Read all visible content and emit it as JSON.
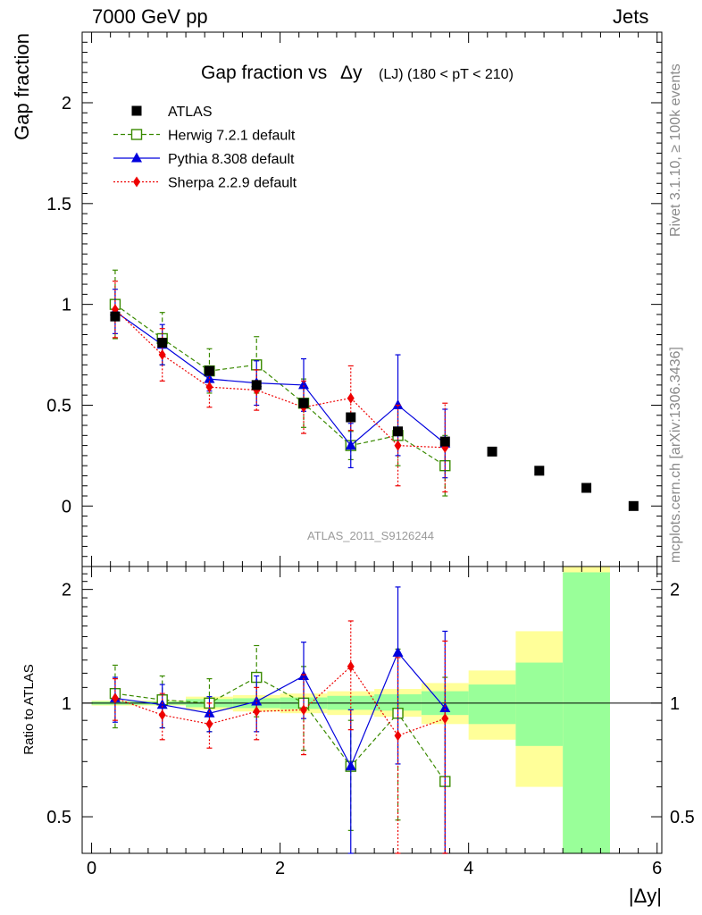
{
  "header": {
    "left": "7000 GeV pp",
    "right": "Jets"
  },
  "side_labels": {
    "rivet": "Rivet 3.1.10, ≥ 100k events",
    "mcplots": "mcplots.cern.ch [arXiv:1306.3436]"
  },
  "chart_data": {
    "type": "scatter",
    "title": "Gap fraction vsΔy (LJ) (180 < pT < 210)",
    "title_parts": {
      "main": "Gap fraction vs",
      "delta": "Δy",
      "sub": "(LJ) (180 < pT < 210)"
    },
    "analysis_id": "ATLAS_2011_S9126244",
    "xlabel": "|Δy|",
    "ylabel": "Gap fraction",
    "ratio_ylabel": "Ratio to ATLAS",
    "xlim": [
      -0.1,
      6.05
    ],
    "ylim": [
      -0.3,
      2.35
    ],
    "ratio_ylim": [
      0.4,
      2.3
    ],
    "x_ticks": [
      "0",
      "2",
      "4",
      "6"
    ],
    "y_ticks": [
      "0",
      "0.5",
      "1",
      "1.5",
      "2"
    ],
    "ratio_y_ticks": [
      "0.5",
      "1",
      "2"
    ],
    "legend_position": "top-left",
    "x": [
      0.25,
      0.75,
      1.25,
      1.75,
      2.25,
      2.75,
      3.25,
      3.75,
      4.25,
      4.75,
      5.25,
      5.75
    ],
    "series": [
      {
        "name": "ATLAS",
        "color": "#000000",
        "marker": "filled-square",
        "values": [
          0.94,
          0.81,
          0.67,
          0.6,
          0.51,
          0.44,
          0.37,
          0.32,
          0.27,
          0.175,
          0.09,
          0.0
        ]
      },
      {
        "name": "Herwig 7.2.1 default",
        "color": "#3a8a00",
        "marker": "open-square",
        "line": "dashed",
        "values": [
          1.0,
          0.83,
          0.67,
          0.7,
          0.51,
          0.3,
          0.35,
          0.2
        ],
        "err": [
          0.17,
          0.13,
          0.11,
          0.14,
          0.12,
          0.07,
          0.15,
          0.15
        ],
        "ratio": [
          1.06,
          1.02,
          1.0,
          1.17,
          1.0,
          0.68,
          0.94,
          0.62
        ],
        "ratio_err": [
          0.2,
          0.16,
          0.16,
          0.25,
          0.25,
          0.22,
          0.45,
          0.55
        ]
      },
      {
        "name": "Pythia 8.308 default",
        "color": "#0000dd",
        "marker": "filled-triangle",
        "line": "solid",
        "values": [
          0.965,
          0.8,
          0.63,
          0.61,
          0.6,
          0.3,
          0.5,
          0.31
        ],
        "err": [
          0.11,
          0.1,
          0.06,
          0.11,
          0.13,
          0.11,
          0.25,
          0.17
        ],
        "ratio": [
          1.03,
          0.99,
          0.94,
          1.01,
          1.18,
          0.68,
          1.36,
          0.97
        ],
        "ratio_err": [
          0.14,
          0.13,
          0.1,
          0.17,
          0.27,
          0.28,
          0.67,
          0.58
        ]
      },
      {
        "name": "Sherpa 2.2.9 default",
        "color": "#ee0000",
        "marker": "filled-diamond",
        "line": "dotted",
        "values": [
          0.975,
          0.75,
          0.59,
          0.575,
          0.49,
          0.535,
          0.3,
          0.29
        ],
        "err": [
          0.14,
          0.13,
          0.1,
          0.1,
          0.13,
          0.16,
          0.2,
          0.22
        ],
        "ratio": [
          1.03,
          0.93,
          0.88,
          0.95,
          0.96,
          1.25,
          0.82,
          0.91
        ],
        "ratio_err": [
          0.13,
          0.13,
          0.12,
          0.15,
          0.23,
          0.4,
          0.5,
          0.55
        ]
      }
    ],
    "ratio_bands": [
      {
        "x0": 0.0,
        "x1": 0.5,
        "yellow": [
          0.985,
          1.015
        ],
        "green": [
          0.99,
          1.01
        ]
      },
      {
        "x0": 0.5,
        "x1": 1.0,
        "yellow": [
          0.985,
          1.015
        ],
        "green": [
          0.99,
          1.01
        ]
      },
      {
        "x0": 1.0,
        "x1": 1.5,
        "yellow": [
          0.96,
          1.04
        ],
        "green": [
          0.975,
          1.025
        ]
      },
      {
        "x0": 1.5,
        "x1": 2.0,
        "yellow": [
          0.95,
          1.05
        ],
        "green": [
          0.97,
          1.03
        ]
      },
      {
        "x0": 2.0,
        "x1": 2.5,
        "yellow": [
          0.94,
          1.06
        ],
        "green": [
          0.965,
          1.035
        ]
      },
      {
        "x0": 2.5,
        "x1": 3.0,
        "yellow": [
          0.93,
          1.075
        ],
        "green": [
          0.96,
          1.045
        ]
      },
      {
        "x0": 3.0,
        "x1": 3.5,
        "yellow": [
          0.92,
          1.09
        ],
        "green": [
          0.955,
          1.055
        ]
      },
      {
        "x0": 3.5,
        "x1": 4.0,
        "yellow": [
          0.88,
          1.13
        ],
        "green": [
          0.93,
          1.075
        ]
      },
      {
        "x0": 4.0,
        "x1": 4.5,
        "yellow": [
          0.8,
          1.22
        ],
        "green": [
          0.88,
          1.12
        ]
      },
      {
        "x0": 4.5,
        "x1": 5.0,
        "yellow": [
          0.6,
          1.55
        ],
        "green": [
          0.77,
          1.28
        ]
      },
      {
        "x0": 5.0,
        "x1": 5.5,
        "yellow": [
          0.3,
          2.4
        ],
        "green": [
          0.3,
          2.22
        ]
      }
    ]
  }
}
